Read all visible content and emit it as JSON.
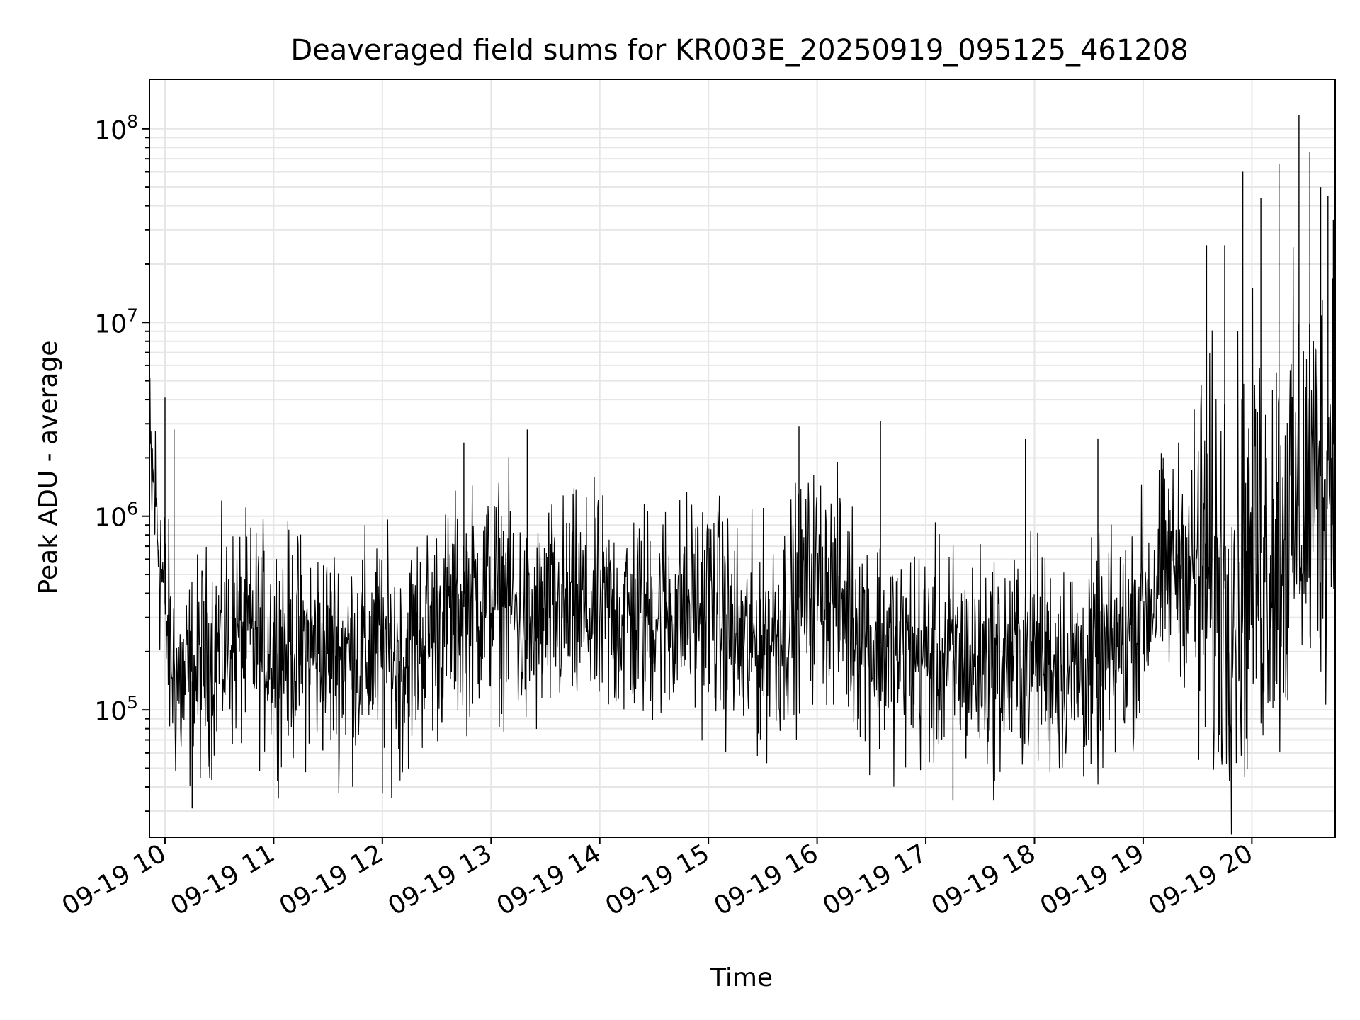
{
  "chart_data": {
    "type": "line",
    "title": "Deaveraged field sums for KR003E_20250919_095125_461208",
    "xlabel": "Time",
    "ylabel": "Peak ADU - average",
    "x_scale": "time",
    "y_scale": "log",
    "xlim": [
      "2025-09-19T09:51:25",
      "2025-09-19T20:46:00"
    ],
    "ylim": [
      22000,
      180000000
    ],
    "grid": true,
    "legend": "none",
    "line_color": "#000000",
    "x_ticks": [
      {
        "t": "2025-09-19T10:00",
        "label": "09-19 10"
      },
      {
        "t": "2025-09-19T11:00",
        "label": "09-19 11"
      },
      {
        "t": "2025-09-19T12:00",
        "label": "09-19 12"
      },
      {
        "t": "2025-09-19T13:00",
        "label": "09-19 13"
      },
      {
        "t": "2025-09-19T14:00",
        "label": "09-19 14"
      },
      {
        "t": "2025-09-19T15:00",
        "label": "09-19 15"
      },
      {
        "t": "2025-09-19T16:00",
        "label": "09-19 16"
      },
      {
        "t": "2025-09-19T17:00",
        "label": "09-19 17"
      },
      {
        "t": "2025-09-19T18:00",
        "label": "09-19 18"
      },
      {
        "t": "2025-09-19T19:00",
        "label": "09-19 19"
      },
      {
        "t": "2025-09-19T20:00",
        "label": "09-19 20"
      }
    ],
    "y_ticks": [
      {
        "value": 100000,
        "label": "10^5"
      },
      {
        "value": 1000000,
        "label": "10^6"
      },
      {
        "value": 10000000,
        "label": "10^7"
      },
      {
        "value": 100000000,
        "label": "10^8"
      }
    ],
    "series": [
      {
        "values": [
          [
            "2025-09-19T09:51",
            1900000
          ],
          [
            "2025-09-19T09:54",
            1300000
          ],
          [
            "2025-09-19T09:57",
            700000
          ],
          [
            "2025-09-19T10:00",
            350000
          ],
          [
            "2025-09-19T10:03",
            190000
          ],
          [
            "2025-09-19T10:06",
            150000
          ],
          [
            "2025-09-19T10:10",
            130000
          ],
          [
            "2025-09-19T10:15",
            140000
          ],
          [
            "2025-09-19T10:20",
            170000
          ],
          [
            "2025-09-19T10:30",
            210000
          ],
          [
            "2025-09-19T10:40",
            240000
          ],
          [
            "2025-09-19T10:50",
            230000
          ],
          [
            "2025-09-19T11:00",
            220000
          ],
          [
            "2025-09-19T11:15",
            210000
          ],
          [
            "2025-09-19T11:30",
            200000
          ],
          [
            "2025-09-19T11:45",
            190000
          ],
          [
            "2025-09-19T12:00",
            210000
          ],
          [
            "2025-09-19T12:10",
            170000
          ],
          [
            "2025-09-19T12:20",
            230000
          ],
          [
            "2025-09-19T12:30",
            270000
          ],
          [
            "2025-09-19T12:40",
            320000
          ],
          [
            "2025-09-19T12:50",
            360000
          ],
          [
            "2025-09-19T13:00",
            400000
          ],
          [
            "2025-09-19T13:10",
            380000
          ],
          [
            "2025-09-19T13:20",
            230000
          ],
          [
            "2025-09-19T13:30",
            300000
          ],
          [
            "2025-09-19T13:45",
            330000
          ],
          [
            "2025-09-19T14:00",
            310000
          ],
          [
            "2025-09-19T14:15",
            300000
          ],
          [
            "2025-09-19T14:30",
            320000
          ],
          [
            "2025-09-19T14:45",
            330000
          ],
          [
            "2025-09-19T15:00",
            360000
          ],
          [
            "2025-09-19T15:10",
            280000
          ],
          [
            "2025-09-19T15:20",
            200000
          ],
          [
            "2025-09-19T15:30",
            230000
          ],
          [
            "2025-09-19T15:40",
            270000
          ],
          [
            "2025-09-19T15:50",
            380000
          ],
          [
            "2025-09-19T16:00",
            470000
          ],
          [
            "2025-09-19T16:10",
            400000
          ],
          [
            "2025-09-19T16:20",
            290000
          ],
          [
            "2025-09-19T16:30",
            230000
          ],
          [
            "2025-09-19T16:45",
            200000
          ],
          [
            "2025-09-19T17:00",
            190000
          ],
          [
            "2025-09-19T17:15",
            180000
          ],
          [
            "2025-09-19T17:30",
            175000
          ],
          [
            "2025-09-19T17:45",
            170000
          ],
          [
            "2025-09-19T18:00",
            200000
          ],
          [
            "2025-09-19T18:15",
            170000
          ],
          [
            "2025-09-19T18:30",
            160000
          ],
          [
            "2025-09-19T18:45",
            200000
          ],
          [
            "2025-09-19T19:00",
            330000
          ],
          [
            "2025-09-19T19:10",
            500000
          ],
          [
            "2025-09-19T19:20",
            600000
          ],
          [
            "2025-09-19T19:30",
            500000
          ],
          [
            "2025-09-19T19:40",
            450000
          ],
          [
            "2025-09-19T19:50",
            480000
          ],
          [
            "2025-09-19T20:00",
            600000
          ],
          [
            "2025-09-19T20:10",
            700000
          ],
          [
            "2025-09-19T20:20",
            900000
          ],
          [
            "2025-09-19T20:30",
            1300000
          ],
          [
            "2025-09-19T20:40",
            1700000
          ],
          [
            "2025-09-19T20:46",
            2500000
          ]
        ]
      }
    ],
    "spikes": [
      [
        "2025-09-19T10:00",
        4100000
      ],
      [
        "2025-09-19T10:05",
        2800000
      ],
      [
        "2025-09-19T10:15",
        31000
      ],
      [
        "2025-09-19T12:00",
        37000
      ],
      [
        "2025-09-19T12:45",
        2400000
      ],
      [
        "2025-09-19T13:20",
        2800000
      ],
      [
        "2025-09-19T15:50",
        2900000
      ],
      [
        "2025-09-19T16:35",
        3100000
      ],
      [
        "2025-09-19T17:15",
        34000
      ],
      [
        "2025-09-19T17:55",
        2500000
      ],
      [
        "2025-09-19T18:35",
        2500000
      ],
      [
        "2025-09-19T19:35",
        25000000
      ],
      [
        "2025-09-19T19:45",
        25000000
      ],
      [
        "2025-09-19T19:55",
        60000000
      ],
      [
        "2025-09-19T20:05",
        44000000
      ],
      [
        "2025-09-19T20:15",
        66000000
      ],
      [
        "2025-09-19T20:26",
        118000000
      ],
      [
        "2025-09-19T20:32",
        76000000
      ],
      [
        "2025-09-19T20:38",
        50000000
      ],
      [
        "2025-09-19T20:42",
        45000000
      ],
      [
        "2025-09-19T20:45",
        34000000
      ]
    ]
  }
}
